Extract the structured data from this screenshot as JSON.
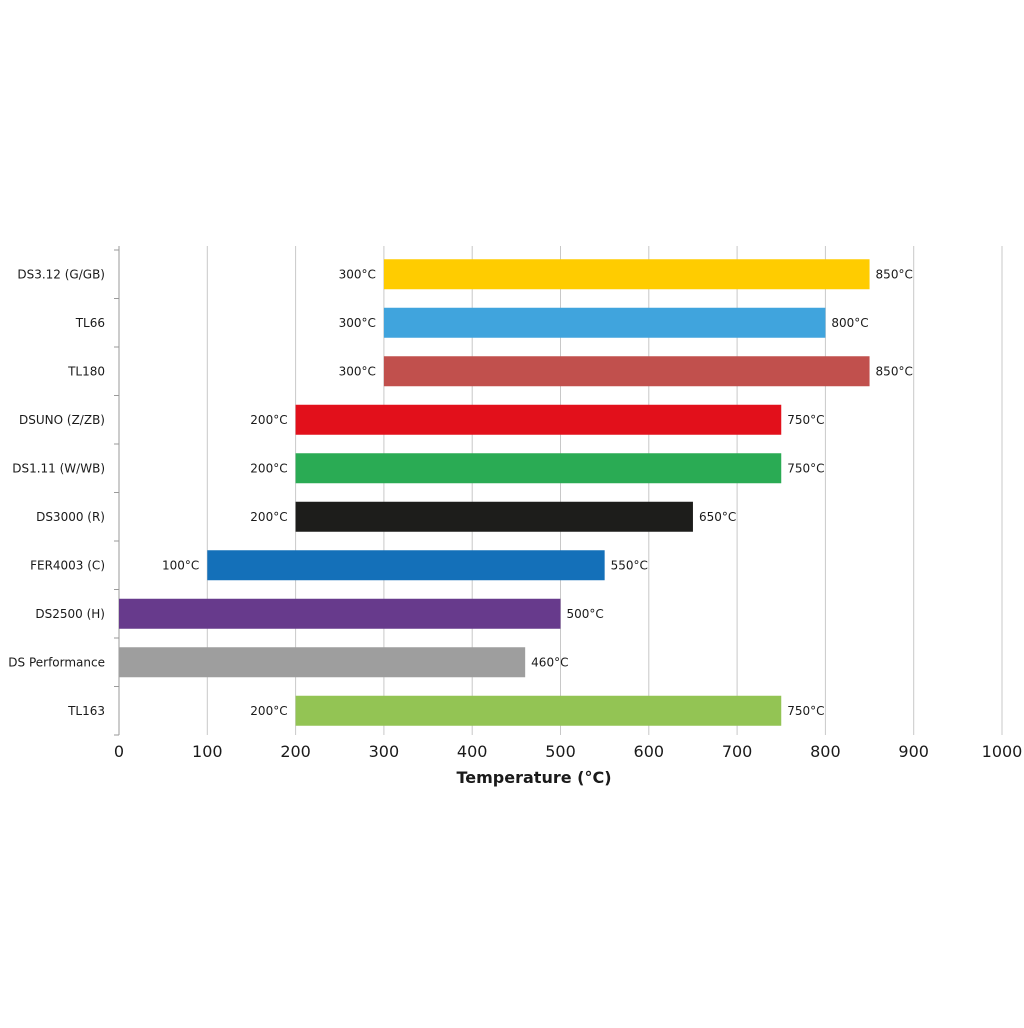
{
  "chart_data": {
    "type": "bar",
    "orientation": "horizontal",
    "range_bars": true,
    "title": "",
    "xlabel": "Temperature (°C)",
    "ylabel": "",
    "xlim": [
      0,
      1000
    ],
    "x_ticks": [
      "0",
      "100",
      "200",
      "300",
      "400",
      "500",
      "600",
      "700",
      "800",
      "900",
      "1000"
    ],
    "x_tick_values": [
      0,
      100,
      200,
      300,
      400,
      500,
      600,
      700,
      800,
      900,
      1000
    ],
    "grid": "vertical",
    "legend": "none",
    "bars": [
      {
        "category": "DS3.12 (G/GB)",
        "start": 300,
        "end": 850,
        "start_label": "300°C",
        "end_label": "850°C",
        "color": "#FFCC00"
      },
      {
        "category": "TL66",
        "start": 300,
        "end": 800,
        "start_label": "300°C",
        "end_label": "800°C",
        "color": "#40A4DD"
      },
      {
        "category": "TL180",
        "start": 300,
        "end": 850,
        "start_label": "300°C",
        "end_label": "850°C",
        "color": "#C1504D"
      },
      {
        "category": "DSUNO (Z/ZB)",
        "start": 200,
        "end": 750,
        "start_label": "200°C",
        "end_label": "750°C",
        "color": "#E2101B"
      },
      {
        "category": "DS1.11 (W/WB)",
        "start": 200,
        "end": 750,
        "start_label": "200°C",
        "end_label": "750°C",
        "color": "#2AAB54"
      },
      {
        "category": "DS3000 (R)",
        "start": 200,
        "end": 650,
        "start_label": "200°C",
        "end_label": "650°C",
        "color": "#1D1D1B"
      },
      {
        "category": "FER4003 (C)",
        "start": 100,
        "end": 550,
        "start_label": "100°C",
        "end_label": "550°C",
        "color": "#1470B9"
      },
      {
        "category": "DS2500 (H)",
        "start": 0,
        "end": 500,
        "start_label": "",
        "end_label": "500°C",
        "color": "#673A8C"
      },
      {
        "category": "DS Performance",
        "start": 0,
        "end": 460,
        "start_label": "",
        "end_label": "460°C",
        "color": "#9E9E9E"
      },
      {
        "category": "TL163",
        "start": 200,
        "end": 750,
        "start_label": "200°C",
        "end_label": "750°C",
        "color": "#93C454"
      }
    ]
  }
}
